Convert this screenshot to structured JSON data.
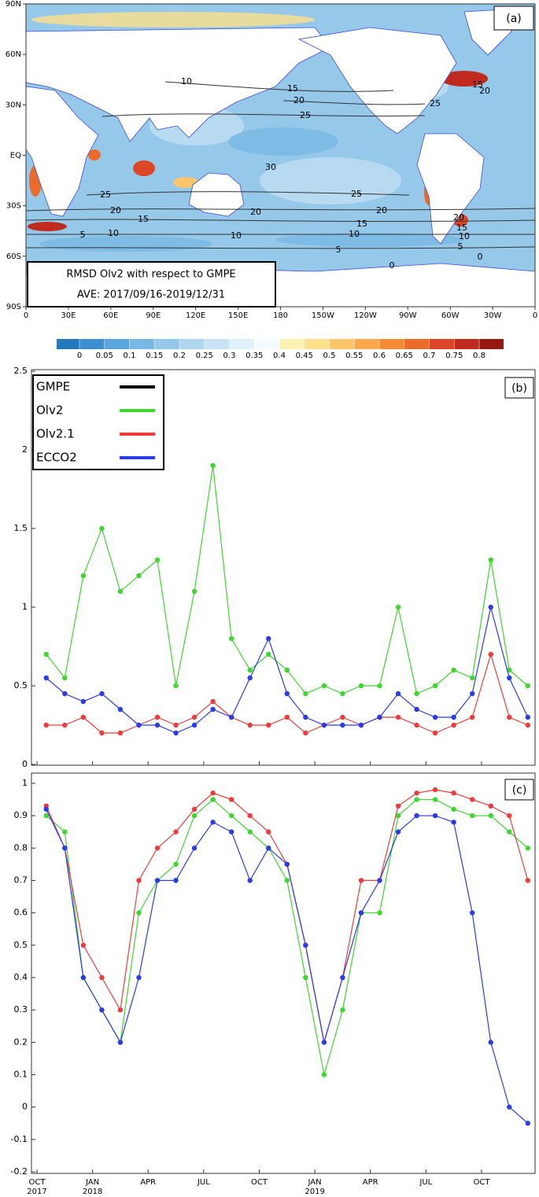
{
  "chart_data": [
    {
      "type": "map",
      "label": "(a)",
      "annotation": [
        "RMSD Olv2 with respect to GMPE",
        "AVE: 2017/09/16-2019/12/31"
      ],
      "xlim": [
        0,
        360
      ],
      "xticks": [
        0,
        {
          "value": 30,
          "label": "30E"
        },
        {
          "value": 60,
          "label": "60E"
        },
        {
          "value": 90,
          "label": "90E"
        },
        {
          "value": 120,
          "label": "120E"
        },
        {
          "value": 150,
          "label": "150E"
        },
        180,
        {
          "value": 210,
          "label": "150W"
        },
        {
          "value": 240,
          "label": "120W"
        },
        {
          "value": 270,
          "label": "90W"
        },
        {
          "value": 300,
          "label": "60W"
        },
        {
          "value": 330,
          "label": "30W"
        },
        {
          "value": 360,
          "label": "0"
        }
      ],
      "ylim": [
        -90,
        90
      ],
      "yticks": [
        {
          "value": 90,
          "label": "90N"
        },
        {
          "value": 60,
          "label": "60N"
        },
        {
          "value": 30,
          "label": "30N"
        },
        {
          "value": 0,
          "label": "EQ"
        },
        {
          "value": -30,
          "label": "30S"
        },
        {
          "value": -60,
          "label": "60S"
        },
        {
          "value": -90,
          "label": "90S"
        }
      ],
      "contour_labels": [
        "10",
        "15",
        "20",
        "25",
        "30",
        "25",
        "20",
        "15",
        "10",
        "5",
        "10",
        "20",
        "25",
        "20",
        "15",
        "10",
        "5",
        "0",
        "15",
        "20",
        "25",
        "20",
        "15",
        "10",
        "5",
        "0"
      ],
      "colorbar": {
        "ticks": [
          0,
          0.05,
          0.1,
          0.15,
          0.2,
          0.25,
          0.3,
          0.35,
          0.4,
          0.45,
          0.5,
          0.55,
          0.6,
          0.65,
          0.7,
          0.75,
          0.8
        ],
        "colors": [
          "#2479bd",
          "#3d8fd0",
          "#5aa5dc",
          "#78b8e4",
          "#94c8ea",
          "#afd6ef",
          "#c7e3f4",
          "#def0fa",
          "#f4fbfe",
          "#fcf3b2",
          "#fde08a",
          "#fbc56a",
          "#f9a94b",
          "#f58c35",
          "#ec6a2a",
          "#dc4526",
          "#c12a1e",
          "#941a10"
        ]
      }
    },
    {
      "type": "line",
      "label": "(b)",
      "legend": "upper left",
      "x": [
        "2017-10",
        "2017-11",
        "2017-12",
        "2018-01",
        "2018-02",
        "2018-03",
        "2018-04",
        "2018-05",
        "2018-06",
        "2018-07",
        "2018-08",
        "2018-09",
        "2018-10",
        "2018-11",
        "2018-12",
        "2019-01",
        "2019-02",
        "2019-03",
        "2019-04",
        "2019-05",
        "2019-06",
        "2019-07",
        "2019-08",
        "2019-09",
        "2019-10",
        "2019-11",
        "2019-12"
      ],
      "series": [
        {
          "name": "GMPE",
          "color": "#000000",
          "values": [
            null,
            null,
            null,
            null,
            null,
            null,
            null,
            null,
            null,
            null,
            null,
            null,
            null,
            null,
            null,
            null,
            null,
            null,
            null,
            null,
            null,
            null,
            null,
            null,
            null,
            null,
            null
          ]
        },
        {
          "name": "Olv2",
          "color": "#3fd62f",
          "values": [
            0.7,
            0.55,
            1.2,
            1.5,
            1.1,
            1.2,
            1.3,
            0.5,
            1.1,
            1.9,
            0.8,
            0.6,
            0.7,
            0.6,
            0.45,
            0.5,
            0.45,
            0.5,
            0.5,
            1.0,
            0.45,
            0.5,
            0.6,
            0.55,
            1.3,
            0.6,
            0.5
          ]
        },
        {
          "name": "Olv2.1",
          "color": "#ef3b3b",
          "values": [
            0.25,
            0.25,
            0.3,
            0.2,
            0.2,
            0.25,
            0.3,
            0.25,
            0.3,
            0.4,
            0.3,
            0.25,
            0.25,
            0.3,
            0.2,
            0.25,
            0.3,
            0.25,
            0.3,
            0.3,
            0.25,
            0.2,
            0.25,
            0.3,
            0.7,
            0.3,
            0.25
          ]
        },
        {
          "name": "ECCO2",
          "color": "#2a3be8",
          "values": [
            0.55,
            0.45,
            0.4,
            0.45,
            0.35,
            0.25,
            0.25,
            0.2,
            0.25,
            0.35,
            0.3,
            0.55,
            0.8,
            0.45,
            0.3,
            0.25,
            0.25,
            0.25,
            0.3,
            0.45,
            0.35,
            0.3,
            0.3,
            0.45,
            1.0,
            0.55,
            0.3
          ]
        }
      ],
      "ylim": [
        0,
        2.5
      ],
      "yticks": [
        0,
        0.5,
        1,
        1.5,
        2,
        2.5
      ]
    },
    {
      "type": "line",
      "label": "(c)",
      "x": [
        "2017-10",
        "2017-11",
        "2017-12",
        "2018-01",
        "2018-02",
        "2018-03",
        "2018-04",
        "2018-05",
        "2018-06",
        "2018-07",
        "2018-08",
        "2018-09",
        "2018-10",
        "2018-11",
        "2018-12",
        "2019-01",
        "2019-02",
        "2019-03",
        "2019-04",
        "2019-05",
        "2019-06",
        "2019-07",
        "2019-08",
        "2019-09",
        "2019-10",
        "2019-11",
        "2019-12"
      ],
      "series": [
        {
          "color": "#3fd62f",
          "values": [
            0.9,
            0.85,
            0.4,
            0.3,
            0.2,
            0.6,
            0.7,
            0.75,
            0.9,
            0.95,
            0.9,
            0.85,
            0.8,
            0.7,
            0.4,
            0.1,
            0.3,
            0.6,
            0.6,
            0.9,
            0.95,
            0.95,
            0.92,
            0.9,
            0.9,
            0.85,
            0.8
          ]
        },
        {
          "color": "#ef3b3b",
          "values": [
            0.93,
            0.8,
            0.5,
            0.4,
            0.3,
            0.7,
            0.8,
            0.85,
            0.92,
            0.97,
            0.95,
            0.9,
            0.85,
            0.75,
            0.5,
            0.2,
            0.4,
            0.7,
            0.7,
            0.93,
            0.97,
            0.98,
            0.97,
            0.95,
            0.93,
            0.9,
            0.7
          ]
        },
        {
          "color": "#2a3be8",
          "values": [
            0.92,
            0.8,
            0.4,
            0.3,
            0.2,
            0.4,
            0.7,
            0.7,
            0.8,
            0.88,
            0.85,
            0.7,
            0.8,
            0.75,
            0.5,
            0.2,
            0.4,
            0.6,
            0.7,
            0.85,
            0.9,
            0.9,
            0.88,
            0.6,
            0.2,
            0,
            -0.05
          ]
        }
      ],
      "ylim": [
        -0.2,
        1
      ],
      "yticks": [
        -0.2,
        -0.1,
        0,
        0.1,
        0.2,
        0.3,
        0.4,
        0.5,
        0.6,
        0.7,
        0.8,
        0.9,
        1
      ],
      "xticks": [
        {
          "value": "2017-10",
          "label": "OCT"
        },
        {
          "value": "2018-01",
          "label": "JAN"
        },
        {
          "value": "2018-04",
          "label": "APR"
        },
        {
          "value": "2018-07",
          "label": "JUL"
        },
        {
          "value": "2018-10",
          "label": "OCT"
        },
        {
          "value": "2019-01",
          "label": "JAN"
        },
        {
          "value": "2019-04",
          "label": "APR"
        },
        {
          "value": "2019-07",
          "label": "JUL"
        },
        {
          "value": "2019-10",
          "label": "OCT"
        }
      ],
      "year_labels": [
        {
          "value": "2017-10",
          "label": "2017"
        },
        {
          "value": "2018-01",
          "label": "2018"
        },
        {
          "value": "2019-01",
          "label": "2019"
        }
      ]
    }
  ]
}
